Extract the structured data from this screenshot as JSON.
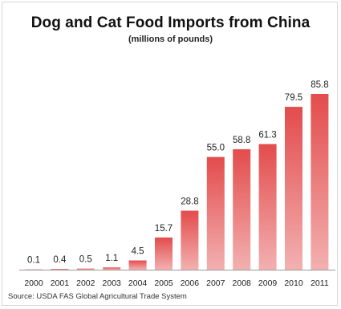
{
  "chart_data": {
    "type": "bar",
    "title": "Dog and Cat Food Imports from China",
    "subtitle": "(millions of pounds)",
    "categories": [
      "2000",
      "2001",
      "2002",
      "2003",
      "2004",
      "2005",
      "2006",
      "2007",
      "2008",
      "2009",
      "2010",
      "2011"
    ],
    "values": [
      0.1,
      0.4,
      0.5,
      1.1,
      4.5,
      15.7,
      28.8,
      55.0,
      58.8,
      61.3,
      79.5,
      85.8
    ],
    "value_labels": [
      "0.1",
      "0.4",
      "0.5",
      "1.1",
      "4.5",
      "15.7",
      "28.8",
      "55.0",
      "58.8",
      "61.3",
      "79.5",
      "85.8"
    ],
    "xlabel": "",
    "ylabel": "",
    "ylim": [
      0,
      85.8
    ],
    "grid": false,
    "legend": "none",
    "colors": {
      "bar_top": "#e34c4c",
      "bar_bottom": "#f3b0b0",
      "axis": "#9a9a9a"
    }
  },
  "source": "Source: USDA FAS Global Agricultural Trade System"
}
